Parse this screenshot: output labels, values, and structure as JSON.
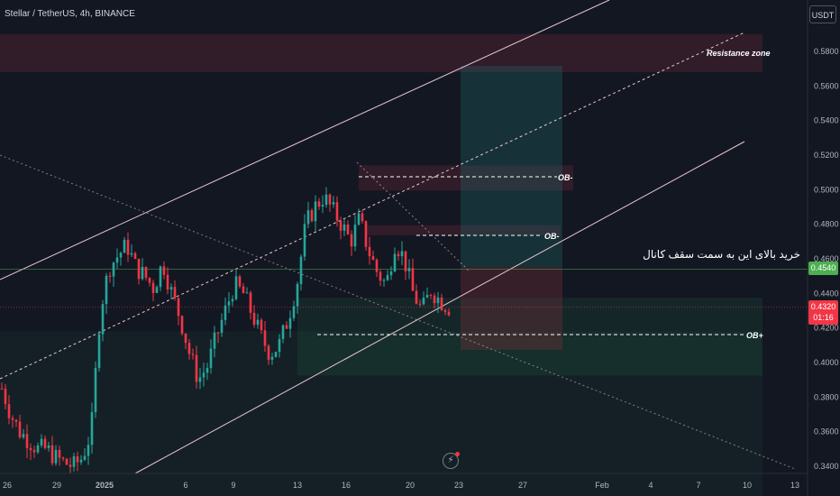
{
  "header": {
    "symbol_title": "Stellar / TetherUS, 4h, BINANCE",
    "currency_button": "USDT"
  },
  "colors": {
    "background": "#131722",
    "up": "#26a69a",
    "down": "#f23645",
    "axis_text": "#b2b5be",
    "last_price_badge": "#f23645",
    "marked_price_badge": "#4caf50"
  },
  "annotations": {
    "resistance": "Resistance zone",
    "ob_upper": "OB-",
    "ob_middle": "OB-",
    "ob_lower": "OB+",
    "persian_note": "خرید بالای این به سمت سقف کانال"
  },
  "last_price": {
    "price": "0.4320",
    "countdown": "01:16"
  },
  "marked_price": {
    "price": "0.4540"
  },
  "flash_icon": "lightning-icon",
  "chart_data": {
    "type": "candlestick",
    "title": "Stellar / TetherUS, 4h, BINANCE",
    "price_axis": {
      "ticks": [
        "0.5800",
        "0.5600",
        "0.5400",
        "0.5200",
        "0.5000",
        "0.4800",
        "0.4600",
        "0.4400",
        "0.4200",
        "0.4000",
        "0.3800",
        "0.3600",
        "0.3400"
      ],
      "range": [
        0.337,
        0.597
      ]
    },
    "time_axis": {
      "ticks": [
        "26",
        "29",
        "2025",
        "6",
        "9",
        "13",
        "16",
        "20",
        "23",
        "27",
        "Feb",
        "4",
        "7",
        "10",
        "13"
      ]
    },
    "grid": false,
    "candles_close_path": [
      0.385,
      0.37,
      0.36,
      0.355,
      0.35,
      0.35,
      0.345,
      0.342,
      0.34,
      0.345,
      0.36,
      0.43,
      0.455,
      0.462,
      0.468,
      0.455,
      0.45,
      0.443,
      0.458,
      0.44,
      0.425,
      0.405,
      0.39,
      0.398,
      0.415,
      0.43,
      0.445,
      0.44,
      0.428,
      0.415,
      0.405,
      0.41,
      0.425,
      0.445,
      0.48,
      0.49,
      0.496,
      0.488,
      0.48,
      0.47,
      0.483,
      0.465,
      0.452,
      0.445,
      0.47,
      0.46,
      0.44,
      0.43,
      0.442,
      0.436,
      0.432
    ],
    "zones": [
      {
        "label": "Resistance zone",
        "price_from": 0.568,
        "price_to": 0.59
      },
      {
        "label": "OB-",
        "price_from": 0.4995,
        "price_to": 0.514
      },
      {
        "label": "OB-",
        "price_from": 0.4735,
        "price_to": 0.4795
      },
      {
        "label": "OB+",
        "price_from": 0.3925,
        "price_to": 0.4375
      }
    ],
    "marked_levels": [
      0.454,
      0.432
    ]
  }
}
